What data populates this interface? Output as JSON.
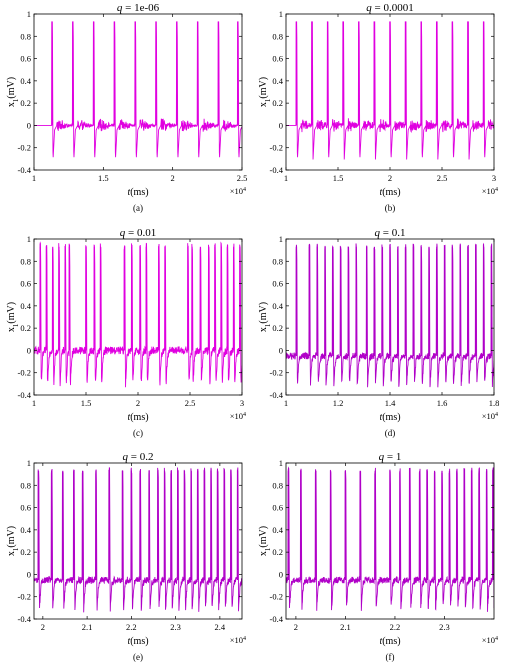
{
  "chart_data": [
    {
      "type": "line",
      "caption": "(a)",
      "title_prefix": "q",
      "title_value": "1e-06",
      "xlabel_italic": "t",
      "xlabel_unit": "(ms)",
      "ylabel_main": "x",
      "ylabel_sub": "1",
      "ylabel_unit": "(mV)",
      "xlim": [
        1,
        2.5
      ],
      "ylim": [
        -0.4,
        1
      ],
      "xticks": [
        1,
        1.5,
        2,
        2.5
      ],
      "xtick_labels": [
        "1",
        "1.5",
        "2",
        "2.5"
      ],
      "yticks": [
        -0.4,
        -0.2,
        0,
        0.2,
        0.4,
        0.6,
        0.8,
        1
      ],
      "ytick_labels": [
        "-0.4",
        "-0.2",
        "0",
        "0.2",
        "0.4",
        "0.6",
        "0.8",
        "1"
      ],
      "x_multiplier": "×10",
      "x_multiplier_exp": "4",
      "color": "#e000e0",
      "pattern": "periodic_noisy",
      "spike_times": [
        1.13,
        1.28,
        1.43,
        1.58,
        1.73,
        1.88,
        2.03,
        2.18,
        2.33,
        2.47
      ],
      "peak": 0.93,
      "trough": -0.32,
      "baseline": 0.0
    },
    {
      "type": "line",
      "caption": "(b)",
      "title_prefix": "q",
      "title_value": "0.0001",
      "xlabel_italic": "t",
      "xlabel_unit": "(ms)",
      "ylabel_main": "x",
      "ylabel_sub": "1",
      "ylabel_unit": "(mV)",
      "xlim": [
        1,
        3
      ],
      "ylim": [
        -0.4,
        1
      ],
      "xticks": [
        1,
        1.5,
        2,
        2.5,
        3
      ],
      "xtick_labels": [
        "1",
        "1.5",
        "2",
        "2.5",
        "3"
      ],
      "yticks": [
        -0.4,
        -0.2,
        0,
        0.2,
        0.4,
        0.6,
        0.8,
        1
      ],
      "ytick_labels": [
        "-0.4",
        "-0.2",
        "0",
        "0.2",
        "0.4",
        "0.6",
        "0.8",
        "1"
      ],
      "x_multiplier": "×10",
      "x_multiplier_exp": "4",
      "color": "#e000e0",
      "pattern": "periodic_noisy",
      "spike_times": [
        1.1,
        1.25,
        1.4,
        1.55,
        1.7,
        1.85,
        2.0,
        2.15,
        2.3,
        2.45,
        2.6,
        2.75,
        2.9
      ],
      "peak": 0.93,
      "trough": -0.32,
      "baseline": 0.0
    },
    {
      "type": "line",
      "caption": "(c)",
      "title_prefix": "q",
      "title_value": "0.01",
      "xlabel_italic": "t",
      "xlabel_unit": "(ms)",
      "ylabel_main": "x",
      "ylabel_sub": "1",
      "ylabel_unit": "(mV)",
      "xlim": [
        1,
        3
      ],
      "ylim": [
        -0.4,
        1
      ],
      "xticks": [
        1,
        1.5,
        2,
        2.5,
        3
      ],
      "xtick_labels": [
        "1",
        "1.5",
        "2",
        "2.5",
        "3"
      ],
      "yticks": [
        -0.4,
        -0.2,
        0,
        0.2,
        0.4,
        0.6,
        0.8,
        1
      ],
      "ytick_labels": [
        "-0.4",
        "-0.2",
        "0",
        "0.2",
        "0.4",
        "0.6",
        "0.8",
        "1"
      ],
      "x_multiplier": "×10",
      "x_multiplier_exp": "4",
      "color": "#e000e0",
      "pattern": "bursting",
      "spike_times": [
        1.06,
        1.12,
        1.18,
        1.24,
        1.3,
        1.34,
        1.5,
        1.58,
        1.64,
        1.87,
        1.94,
        2.02,
        2.08,
        2.2,
        2.26,
        2.48,
        2.52,
        2.6,
        2.68,
        2.74,
        2.8,
        2.86,
        2.92,
        2.98
      ],
      "peak": 0.93,
      "trough": -0.32,
      "baseline": 0.0
    },
    {
      "type": "line",
      "caption": "(d)",
      "title_prefix": "q",
      "title_value": "0.1",
      "xlabel_italic": "t",
      "xlabel_unit": "(ms)",
      "ylabel_main": "x",
      "ylabel_sub": "1",
      "ylabel_unit": "(mV)",
      "xlim": [
        1,
        1.8
      ],
      "ylim": [
        -0.4,
        1
      ],
      "xticks": [
        1,
        1.2,
        1.4,
        1.6,
        1.8
      ],
      "xtick_labels": [
        "1",
        "1.2",
        "1.4",
        "1.6",
        "1.8"
      ],
      "yticks": [
        -0.4,
        -0.2,
        0,
        0.2,
        0.4,
        0.6,
        0.8,
        1
      ],
      "ytick_labels": [
        "-0.4",
        "-0.2",
        "0",
        "0.2",
        "0.4",
        "0.6",
        "0.8",
        "1"
      ],
      "x_multiplier": "×10",
      "x_multiplier_exp": "4",
      "color": "#b000c8",
      "pattern": "dense",
      "spike_times": [
        1.04,
        1.09,
        1.12,
        1.15,
        1.18,
        1.21,
        1.24,
        1.27,
        1.31,
        1.34,
        1.37,
        1.4,
        1.43,
        1.46,
        1.49,
        1.52,
        1.55,
        1.58,
        1.61,
        1.64,
        1.67,
        1.7,
        1.73,
        1.76,
        1.79
      ],
      "peak": 0.93,
      "trough": -0.32,
      "baseline": -0.05
    },
    {
      "type": "line",
      "caption": "(e)",
      "title_prefix": "q",
      "title_value": "0.2",
      "xlabel_italic": "t",
      "xlabel_unit": "(ms)",
      "ylabel_main": "x",
      "ylabel_sub": "1",
      "ylabel_unit": "(mV)",
      "xlim": [
        1.98,
        2.45
      ],
      "ylim": [
        -0.4,
        1
      ],
      "xticks": [
        2,
        2.1,
        2.2,
        2.3,
        2.4
      ],
      "xtick_labels": [
        "2",
        "2.1",
        "2.2",
        "2.3",
        "2.4"
      ],
      "yticks": [
        -0.4,
        -0.2,
        0,
        0.2,
        0.4,
        0.6,
        0.8,
        1
      ],
      "ytick_labels": [
        "-0.4",
        "-0.2",
        "0",
        "0.2",
        "0.4",
        "0.6",
        "0.8",
        "1"
      ],
      "x_multiplier": "×10",
      "x_multiplier_exp": "4",
      "color": "#b000c8",
      "pattern": "dense",
      "spike_times": [
        1.99,
        2.02,
        2.045,
        2.07,
        2.09,
        2.12,
        2.15,
        2.18,
        2.2,
        2.22,
        2.24,
        2.26,
        2.275,
        2.29,
        2.305,
        2.32,
        2.335,
        2.35,
        2.365,
        2.38,
        2.395,
        2.41,
        2.425,
        2.44
      ],
      "peak": 0.93,
      "trough": -0.32,
      "baseline": -0.05
    },
    {
      "type": "line",
      "caption": "(f)",
      "title_prefix": "q",
      "title_value": "1",
      "xlabel_italic": "t",
      "xlabel_unit": "(ms)",
      "ylabel_main": "x",
      "ylabel_sub": "1",
      "ylabel_unit": "(mV)",
      "xlim": [
        1.98,
        2.4
      ],
      "ylim": [
        -0.4,
        1
      ],
      "xticks": [
        2,
        2.1,
        2.2,
        2.3
      ],
      "xtick_labels": [
        "2",
        "2.1",
        "2.2",
        "2.3"
      ],
      "yticks": [
        -0.4,
        -0.2,
        0,
        0.2,
        0.4,
        0.6,
        0.8,
        1
      ],
      "ytick_labels": [
        "-0.4",
        "-0.2",
        "0",
        "0.2",
        "0.4",
        "0.6",
        "0.8",
        "1"
      ],
      "x_multiplier": "×10",
      "x_multiplier_exp": "4",
      "color": "#b000c8",
      "pattern": "dense",
      "spike_times": [
        1.985,
        2.01,
        2.04,
        2.07,
        2.1,
        2.13,
        2.16,
        2.19,
        2.21,
        2.23,
        2.25,
        2.265,
        2.28,
        2.295,
        2.31,
        2.325,
        2.34,
        2.355,
        2.37,
        2.385,
        2.398
      ],
      "peak": 0.93,
      "trough": -0.32,
      "baseline": -0.05
    }
  ]
}
